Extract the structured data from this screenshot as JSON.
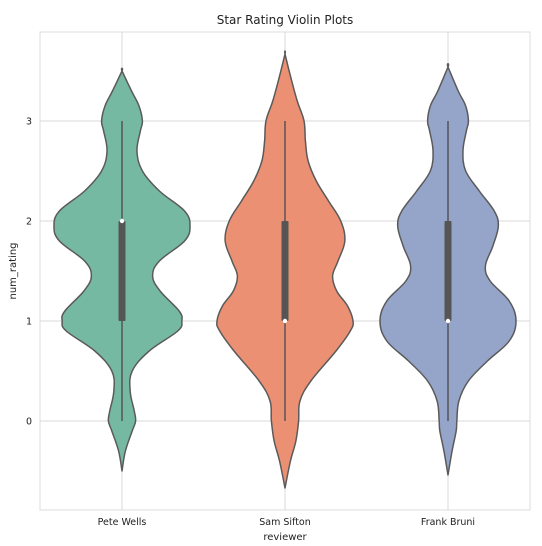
{
  "chart_data": {
    "type": "violin",
    "title": "Star Rating Violin Plots",
    "xlabel": "reviewer",
    "ylabel": "num_rating",
    "categories": [
      "Pete Wells",
      "Sam Sifton",
      "Frank Bruni"
    ],
    "yticks": [
      0,
      1,
      2,
      3
    ],
    "ylim": [
      -0.9,
      3.9
    ],
    "grid": true,
    "background": "#ffffff",
    "grid_color": "#d9d9d9",
    "outline_color": "#5a5a5a",
    "series": [
      {
        "category": "Pete Wells",
        "color": "#76b9a3",
        "range": [
          -0.5,
          3.5
        ],
        "whisker": [
          0,
          3
        ],
        "quartiles": [
          1,
          2
        ],
        "median": 2,
        "density": [
          [
            -0.5,
            0.0
          ],
          [
            -0.3,
            0.05
          ],
          [
            -0.1,
            0.15
          ],
          [
            0.0,
            0.2
          ],
          [
            0.1,
            0.18
          ],
          [
            0.3,
            0.12
          ],
          [
            0.5,
            0.15
          ],
          [
            0.7,
            0.4
          ],
          [
            0.9,
            0.82
          ],
          [
            1.0,
            0.88
          ],
          [
            1.1,
            0.84
          ],
          [
            1.3,
            0.56
          ],
          [
            1.45,
            0.45
          ],
          [
            1.6,
            0.55
          ],
          [
            1.8,
            0.92
          ],
          [
            1.95,
            1.0
          ],
          [
            2.1,
            0.92
          ],
          [
            2.3,
            0.55
          ],
          [
            2.5,
            0.3
          ],
          [
            2.7,
            0.22
          ],
          [
            2.9,
            0.27
          ],
          [
            3.0,
            0.3
          ],
          [
            3.15,
            0.25
          ],
          [
            3.3,
            0.14
          ],
          [
            3.5,
            0.0
          ]
        ]
      },
      {
        "category": "Sam Sifton",
        "color": "#ec9073",
        "range": [
          -0.67,
          3.67
        ],
        "whisker": [
          0,
          3
        ],
        "quartiles": [
          1,
          2
        ],
        "median": 1,
        "density": [
          [
            -0.67,
            0.0
          ],
          [
            -0.4,
            0.08
          ],
          [
            -0.2,
            0.16
          ],
          [
            0.0,
            0.2
          ],
          [
            0.2,
            0.22
          ],
          [
            0.4,
            0.38
          ],
          [
            0.7,
            0.75
          ],
          [
            0.9,
            0.96
          ],
          [
            1.0,
            1.0
          ],
          [
            1.15,
            0.92
          ],
          [
            1.3,
            0.76
          ],
          [
            1.45,
            0.7
          ],
          [
            1.6,
            0.78
          ],
          [
            1.8,
            0.88
          ],
          [
            2.0,
            0.82
          ],
          [
            2.2,
            0.64
          ],
          [
            2.4,
            0.46
          ],
          [
            2.6,
            0.34
          ],
          [
            2.8,
            0.3
          ],
          [
            3.0,
            0.28
          ],
          [
            3.2,
            0.18
          ],
          [
            3.45,
            0.08
          ],
          [
            3.67,
            0.0
          ]
        ]
      },
      {
        "category": "Frank Bruni",
        "color": "#95a5c9",
        "range": [
          -0.54,
          3.54
        ],
        "whisker": [
          0,
          3
        ],
        "quartiles": [
          1,
          2
        ],
        "median": 1,
        "density": [
          [
            -0.54,
            0.0
          ],
          [
            -0.3,
            0.06
          ],
          [
            -0.1,
            0.12
          ],
          [
            0.0,
            0.13
          ],
          [
            0.2,
            0.16
          ],
          [
            0.4,
            0.3
          ],
          [
            0.6,
            0.58
          ],
          [
            0.8,
            0.9
          ],
          [
            1.0,
            1.0
          ],
          [
            1.2,
            0.9
          ],
          [
            1.4,
            0.62
          ],
          [
            1.55,
            0.55
          ],
          [
            1.75,
            0.66
          ],
          [
            1.95,
            0.74
          ],
          [
            2.1,
            0.68
          ],
          [
            2.3,
            0.46
          ],
          [
            2.5,
            0.26
          ],
          [
            2.7,
            0.22
          ],
          [
            2.9,
            0.27
          ],
          [
            3.0,
            0.3
          ],
          [
            3.15,
            0.26
          ],
          [
            3.3,
            0.15
          ],
          [
            3.54,
            0.0
          ]
        ]
      }
    ]
  }
}
